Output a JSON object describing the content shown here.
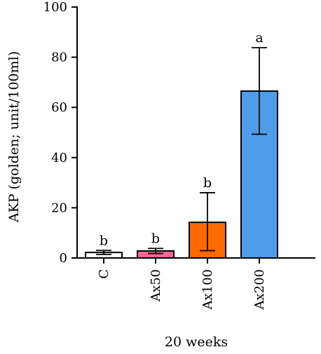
{
  "chart_data": {
    "type": "bar",
    "categories": [
      "C",
      "Ax50",
      "Ax100",
      "Ax200"
    ],
    "values": [
      2.2,
      2.8,
      14.2,
      66.5
    ],
    "errors_upper": [
      0.8,
      1.0,
      11.8,
      17.3
    ],
    "errors_lower": [
      0.8,
      1.0,
      11.3,
      17.2
    ],
    "significance": [
      "b",
      "b",
      "b",
      "a"
    ],
    "colors": [
      "#ffffff",
      "#f06a93",
      "#ff6a00",
      "#4f9de8"
    ],
    "xlabel": "20 weeks",
    "ylabel": "AKP (golden; unit/100ml)",
    "ylim": [
      0,
      100
    ],
    "yticks": [
      0,
      20,
      40,
      60,
      80,
      100
    ],
    "grid": false
  }
}
